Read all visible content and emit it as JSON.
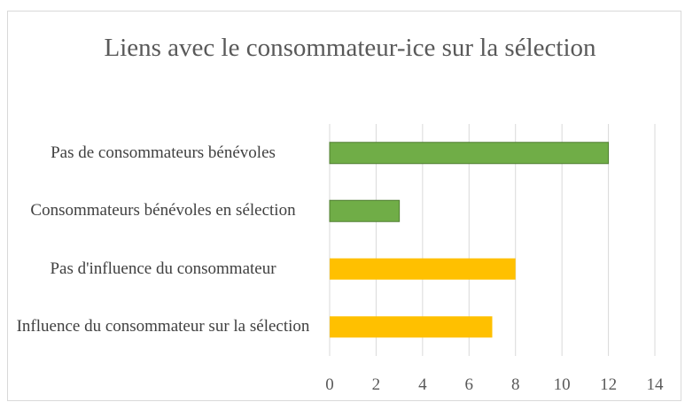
{
  "chart_data": {
    "type": "barh",
    "title": "Liens avec le consommateur-ice sur la sélection",
    "categories": [
      "Pas de consommateurs bénévoles",
      "Consommateurs bénévoles en sélection",
      "Pas d'influence du consommateur",
      "Influence du consommateur sur la sélection"
    ],
    "values": [
      12,
      3,
      8,
      7
    ],
    "colors": [
      "#70ad47",
      "#70ad47",
      "#ffc000",
      "#ffc000"
    ],
    "xlim": [
      0,
      14
    ],
    "xticks": [
      0,
      2,
      4,
      6,
      8,
      10,
      12,
      14
    ],
    "grid": true
  }
}
